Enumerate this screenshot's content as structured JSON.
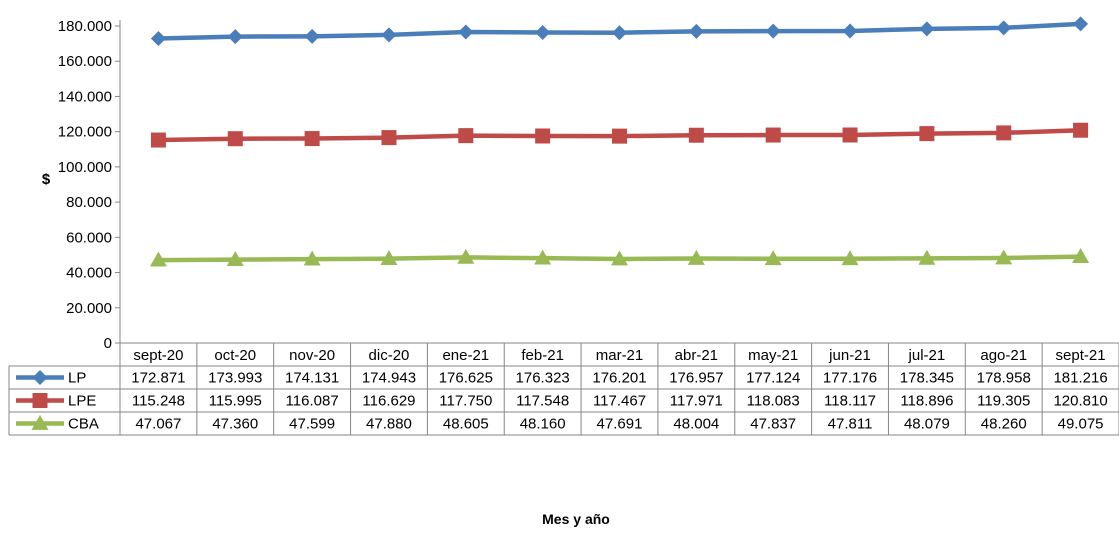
{
  "chart_data": {
    "type": "line",
    "xlabel": "Mes y año",
    "ylabel": "$",
    "ylim": [
      0,
      180000
    ],
    "yticks": [
      0,
      20000,
      40000,
      60000,
      80000,
      100000,
      120000,
      140000,
      160000,
      180000
    ],
    "ytick_labels": [
      "0",
      "20.000",
      "40.000",
      "60.000",
      "80.000",
      "100.000",
      "120.000",
      "140.000",
      "160.000",
      "180.000"
    ],
    "grid": false,
    "legend": "data-table",
    "categories": [
      "sept-20",
      "oct-20",
      "nov-20",
      "dic-20",
      "ene-21",
      "feb-21",
      "mar-21",
      "abr-21",
      "may-21",
      "jun-21",
      "jul-21",
      "ago-21",
      "sept-21"
    ],
    "series": [
      {
        "name": "LP",
        "color": "#4a7ebb",
        "marker": "diamond",
        "values": [
          172871,
          173993,
          174131,
          174943,
          176625,
          176323,
          176201,
          176957,
          177124,
          177176,
          178345,
          178958,
          181216
        ],
        "labels": [
          "172.871",
          "173.993",
          "174.131",
          "174.943",
          "176.625",
          "176.323",
          "176.201",
          "176.957",
          "177.124",
          "177.176",
          "178.345",
          "178.958",
          "181.216"
        ]
      },
      {
        "name": "LPE",
        "color": "#be4b48",
        "marker": "square",
        "values": [
          115248,
          115995,
          116087,
          116629,
          117750,
          117548,
          117467,
          117971,
          118083,
          118117,
          118896,
          119305,
          120810
        ],
        "labels": [
          "115.248",
          "115.995",
          "116.087",
          "116.629",
          "117.750",
          "117.548",
          "117.467",
          "117.971",
          "118.083",
          "118.117",
          "118.896",
          "119.305",
          "120.810"
        ]
      },
      {
        "name": "CBA",
        "color": "#98b954",
        "marker": "triangle",
        "values": [
          47067,
          47360,
          47599,
          47880,
          48605,
          48160,
          47691,
          48004,
          47837,
          47811,
          48079,
          48260,
          49075
        ],
        "labels": [
          "47.067",
          "47.360",
          "47.599",
          "47.880",
          "48.605",
          "48.160",
          "47.691",
          "48.004",
          "47.837",
          "47.811",
          "48.079",
          "48.260",
          "49.075"
        ]
      }
    ]
  }
}
